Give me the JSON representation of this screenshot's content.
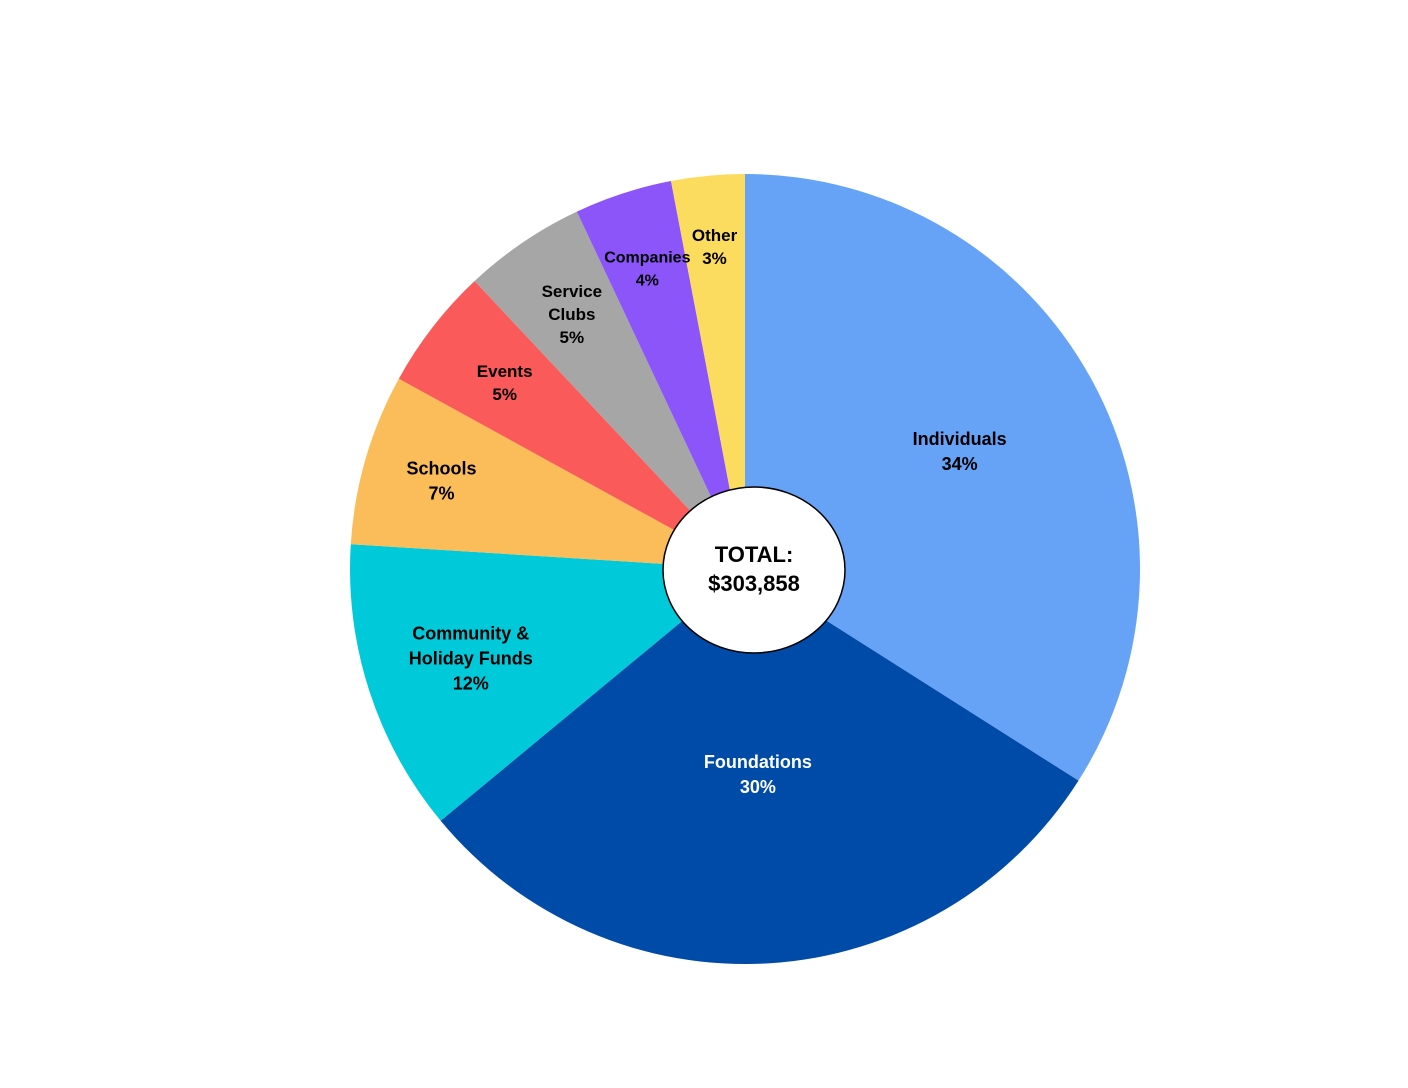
{
  "chart_data": {
    "type": "pie",
    "center_text": {
      "line1": "TOTAL:",
      "line2": "$303,858"
    },
    "slices": [
      {
        "label_lines": [
          "Individuals"
        ],
        "percent_label": "34%",
        "value": 34,
        "color": "#66a3f7",
        "text_color": "#000000"
      },
      {
        "label_lines": [
          "Foundations"
        ],
        "percent_label": "30%",
        "value": 30,
        "color": "#004aa8",
        "text_color": "#ffffff"
      },
      {
        "label_lines": [
          "Community &",
          "Holiday Funds"
        ],
        "percent_label": "12%",
        "value": 12,
        "color": "#00c9d9",
        "text_color": "#000000"
      },
      {
        "label_lines": [
          "Schools"
        ],
        "percent_label": "7%",
        "value": 7,
        "color": "#fbbc5a",
        "text_color": "#000000"
      },
      {
        "label_lines": [
          "Events"
        ],
        "percent_label": "5%",
        "value": 5,
        "color": "#fa5a5a",
        "text_color": "#000000"
      },
      {
        "label_lines": [
          "Service",
          "Clubs"
        ],
        "percent_label": "5%",
        "value": 5,
        "color": "#a6a6a6",
        "text_color": "#000000"
      },
      {
        "label_lines": [
          "Companies"
        ],
        "percent_label": "4%",
        "value": 4,
        "color": "#8c55f9",
        "text_color": "#000000"
      },
      {
        "label_lines": [
          "Other"
        ],
        "percent_label": "3%",
        "value": 3,
        "color": "#fcdc5e",
        "text_color": "#000000"
      }
    ],
    "start_position": "12 o'clock",
    "direction": "clockwise",
    "legend": "none",
    "center_hole": "white ellipse with black outline"
  }
}
